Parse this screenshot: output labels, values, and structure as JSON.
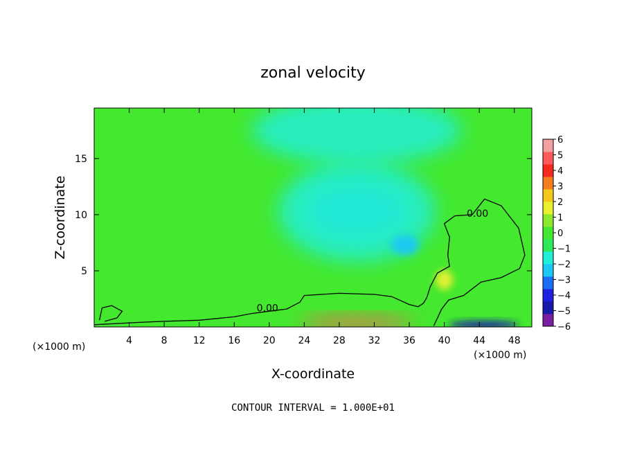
{
  "chart_data": {
    "type": "heatmap",
    "title": "zonal velocity",
    "xlabel": "X-coordinate",
    "ylabel": "Z-coordinate",
    "x_unit_left": "(×1000 m)",
    "x_unit_right": "(×1000 m)",
    "footer": "CONTOUR INTERVAL = 1.000E+01",
    "xlim": [
      0,
      50
    ],
    "ylim": [
      0,
      19.5
    ],
    "x_ticks": [
      4,
      8,
      12,
      16,
      20,
      24,
      28,
      32,
      36,
      40,
      44,
      48
    ],
    "y_ticks": [
      5,
      10,
      15
    ],
    "colorbar": {
      "min": -6,
      "max": 6,
      "ticks": [
        "6",
        "5",
        "4",
        "3",
        "2",
        "1",
        "0",
        "−1",
        "−2",
        "−3",
        "−4",
        "−5",
        "−6"
      ],
      "colors": [
        "#7b1fa2",
        "#1a1aa8",
        "#2020e0",
        "#1e6ef5",
        "#1ec8f5",
        "#22eed8",
        "#2ee85a",
        "#44e82e",
        "#8ee82e",
        "#e8f030",
        "#f5c81e",
        "#f57f1e",
        "#f52a1e",
        "#ff5a5a",
        "#f5a0a0"
      ]
    },
    "features": [
      {
        "name": "jet-core",
        "x": 30,
        "z": 10.3,
        "value": -2.8,
        "rx": 5.5,
        "rz": 2.2
      },
      {
        "name": "jet-halo",
        "x": 30,
        "z": 10.3,
        "value": -1.6,
        "rx": 9,
        "rz": 4.5
      },
      {
        "name": "upper-band",
        "x": 30,
        "z": 17.5,
        "value": -1.5,
        "rx": 12,
        "rz": 3
      },
      {
        "name": "secondary-core",
        "x": 35.5,
        "z": 7.3,
        "value": -2.3,
        "rx": 1.6,
        "rz": 0.9
      },
      {
        "name": "warm-spot",
        "x": 40,
        "z": 4.2,
        "value": 1.8,
        "rx": 1.0,
        "rz": 0.9
      },
      {
        "name": "surface-jet",
        "x": 30,
        "z": 0.3,
        "value": 4.5,
        "rx": 6.5,
        "rz": 0.6
      },
      {
        "name": "surface-easterly",
        "x": 44.5,
        "z": 0.2,
        "value": -4.5,
        "rx": 4,
        "rz": 0.35
      }
    ],
    "contours": [
      {
        "label": "0.00",
        "label_x": 19.8,
        "label_z": 1.4,
        "points": [
          [
            0,
            0.2
          ],
          [
            5,
            0.4
          ],
          [
            8,
            0.5
          ],
          [
            12,
            0.6
          ],
          [
            16,
            0.9
          ],
          [
            18,
            1.2
          ],
          [
            20,
            1.4
          ],
          [
            22,
            1.6
          ],
          [
            23.5,
            2.2
          ],
          [
            24,
            2.8
          ],
          [
            28,
            3.0
          ],
          [
            32,
            2.9
          ],
          [
            34,
            2.7
          ],
          [
            36,
            2.0
          ],
          [
            37,
            1.8
          ],
          [
            37.6,
            2.1
          ],
          [
            38,
            2.6
          ],
          [
            38.4,
            3.6
          ],
          [
            39.2,
            4.8
          ],
          [
            40.6,
            5.4
          ],
          [
            40.4,
            6.4
          ],
          [
            40.6,
            8.0
          ],
          [
            40,
            9.2
          ],
          [
            41.2,
            9.9
          ],
          [
            43.2,
            10.0
          ],
          [
            44.6,
            11.4
          ],
          [
            46.5,
            10.8
          ],
          [
            48.5,
            8.8
          ],
          [
            49.2,
            6.4
          ],
          [
            48.6,
            5.2
          ],
          [
            46.5,
            4.4
          ],
          [
            44.2,
            4.0
          ],
          [
            42.2,
            2.8
          ],
          [
            40.5,
            2.4
          ],
          [
            39.7,
            1.6
          ],
          [
            38.8,
            0.1
          ]
        ]
      },
      {
        "label": "0.00",
        "label_x": 43.8,
        "label_z": 9.8,
        "points": [
          [
            0.6,
            0.6
          ],
          [
            0.9,
            1.7
          ],
          [
            2,
            1.9
          ],
          [
            3.2,
            1.4
          ],
          [
            2.6,
            0.8
          ],
          [
            1.2,
            0.5
          ]
        ]
      }
    ]
  }
}
